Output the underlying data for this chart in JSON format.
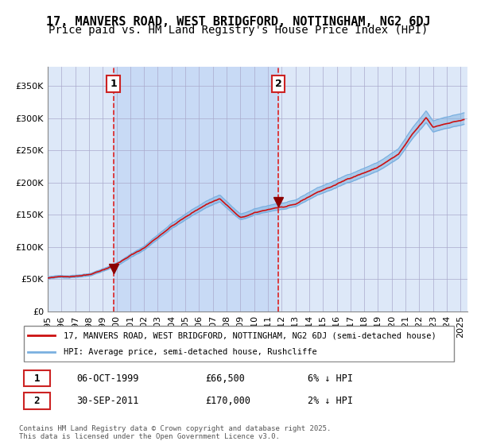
{
  "title": "17, MANVERS ROAD, WEST BRIDGFORD, NOTTINGHAM, NG2 6DJ",
  "subtitle": "Price paid vs. HM Land Registry's House Price Index (HPI)",
  "legend_line1": "17, MANVERS ROAD, WEST BRIDGFORD, NOTTINGHAM, NG2 6DJ (semi-detached house)",
  "legend_line2": "HPI: Average price, semi-detached house, Rushcliffe",
  "annotation1_label": "1",
  "annotation1_date": "06-OCT-1999",
  "annotation1_price": "£66,500",
  "annotation1_hpi": "6% ↓ HPI",
  "annotation1_year": 1999.77,
  "annotation1_value": 66500,
  "annotation2_label": "2",
  "annotation2_date": "30-SEP-2011",
  "annotation2_price": "£170,000",
  "annotation2_hpi": "2% ↓ HPI",
  "annotation2_year": 2011.75,
  "annotation2_value": 170000,
  "footer": "Contains HM Land Registry data © Crown copyright and database right 2025.\nThis data is licensed under the Open Government Licence v3.0.",
  "ylim": [
    0,
    380000
  ],
  "xlim_start": 1995.0,
  "xlim_end": 2025.5,
  "background_color": "#ffffff",
  "plot_bg_color": "#dde8f8",
  "ownership_bg_color": "#c8daf5",
  "grid_color": "#aaaacc",
  "hpi_line_color": "#7ab0e0",
  "price_line_color": "#cc1111",
  "dashed_line_color": "#dd2222",
  "title_fontsize": 11,
  "subtitle_fontsize": 10,
  "tick_fontsize": 8
}
